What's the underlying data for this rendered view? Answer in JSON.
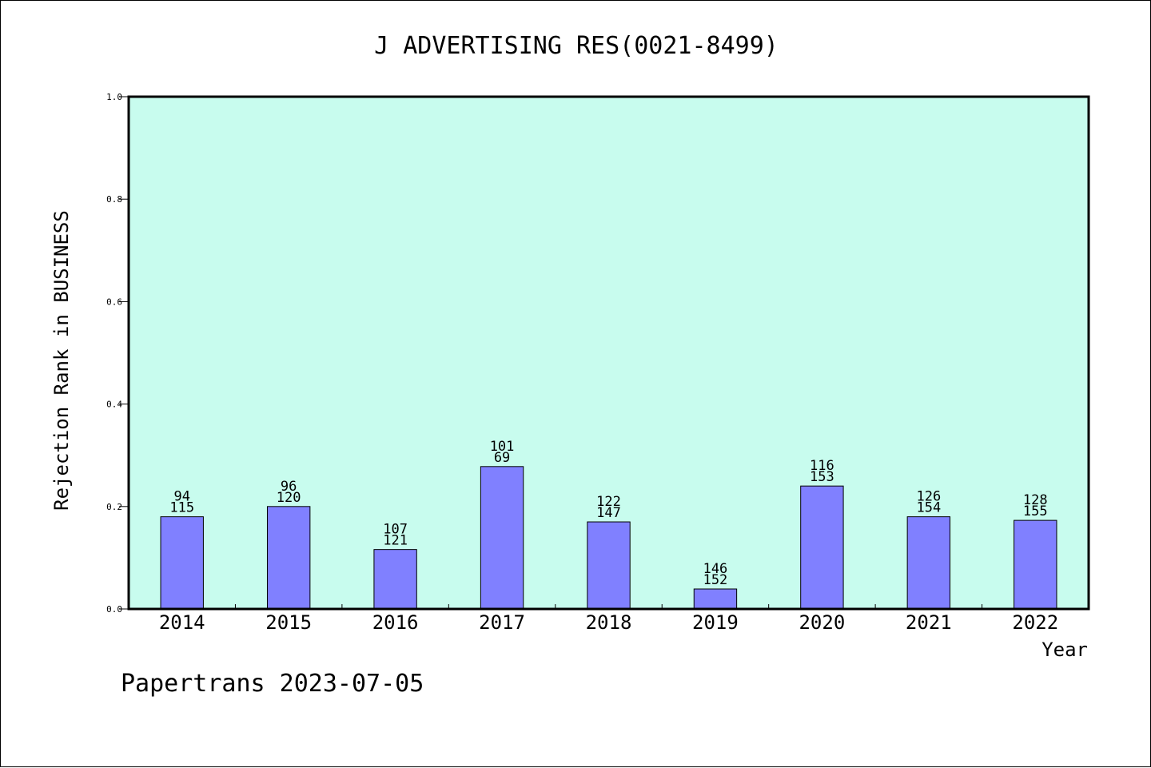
{
  "chart_data": {
    "type": "bar",
    "title": "J ADVERTISING RES(0021-8499)",
    "xlabel": "Year",
    "ylabel": "Rejection Rank in BUSINESS",
    "ylim": [
      0,
      1.0
    ],
    "yticks": [
      "0.0",
      "0.2",
      "0.4",
      "0.6",
      "0.8",
      "1.0"
    ],
    "categories": [
      "2014",
      "2015",
      "2016",
      "2017",
      "2018",
      "2019",
      "2020",
      "2021",
      "2022"
    ],
    "values": [
      0.18,
      0.2,
      0.116,
      0.278,
      0.17,
      0.039,
      0.24,
      0.18,
      0.173
    ],
    "label_top": [
      "94",
      "96",
      "107",
      "101",
      "122",
      "146",
      "116",
      "126",
      "128"
    ],
    "label_bottom": [
      "115",
      "120",
      "121",
      "69",
      "147",
      "152",
      "153",
      "154",
      "155"
    ],
    "grid": false,
    "colors": {
      "plot_background": "#c8fcee",
      "bar_fill": "#8080ff",
      "bar_stroke": "#000000"
    }
  },
  "footer": "Papertrans 2023-07-05"
}
